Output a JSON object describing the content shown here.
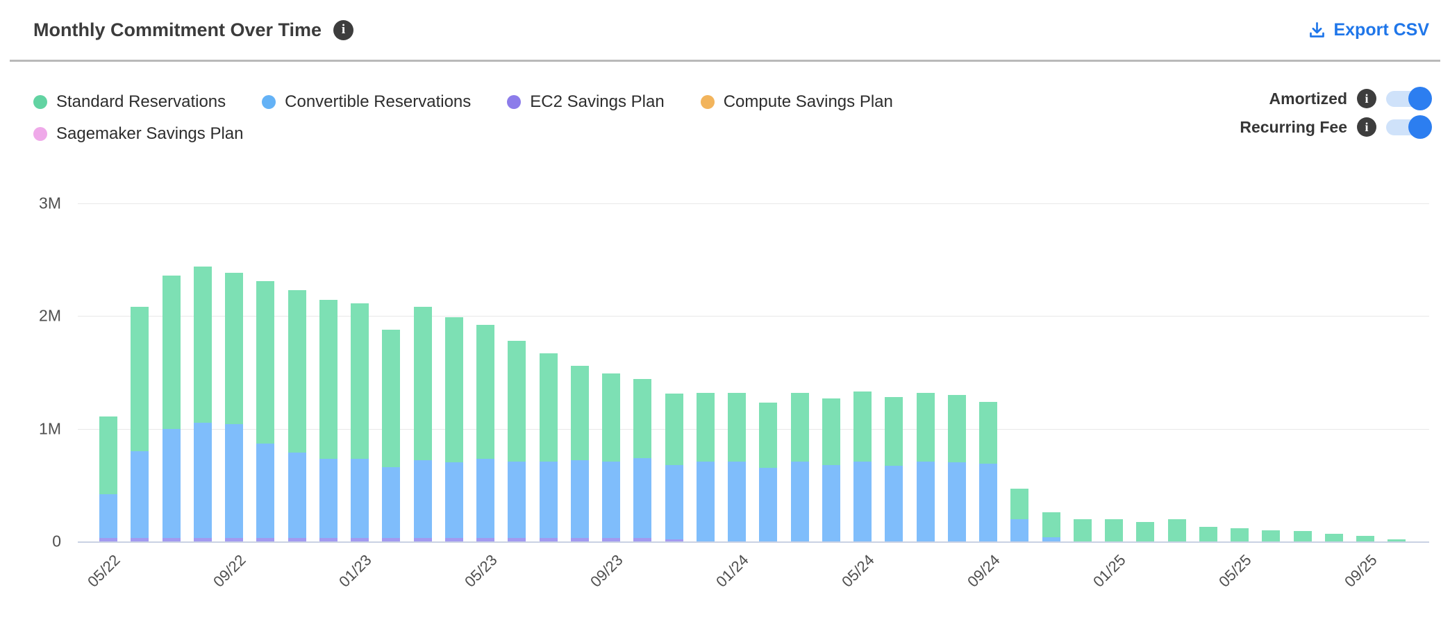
{
  "header": {
    "title": "Monthly Commitment Over Time",
    "export_label": "Export CSV"
  },
  "toggles": [
    {
      "label": "Amortized",
      "enabled": true
    },
    {
      "label": "Recurring Fee",
      "enabled": true
    }
  ],
  "colors": {
    "accent_blue": "#1f76e9",
    "toggle_knob": "#2c7ef0",
    "toggle_track": "#cfe2fa",
    "info_badge": "#3d3d3d",
    "axis_line": "#c9d1e3",
    "gridline": "#e8e8e8",
    "tick_text": "#4f4f4f"
  },
  "chart_data": {
    "type": "bar",
    "stacked": true,
    "title": "Monthly Commitment Over Time",
    "unit": "millions",
    "y_ticks": [
      "0",
      "1M",
      "2M",
      "3M"
    ],
    "ylim": [
      0,
      3
    ],
    "grid": true,
    "legend_position": "top-left",
    "months": [
      "05/22",
      "06/22",
      "07/22",
      "08/22",
      "09/22",
      "10/22",
      "11/22",
      "12/22",
      "01/23",
      "02/23",
      "03/23",
      "04/23",
      "05/23",
      "06/23",
      "07/23",
      "08/23",
      "09/23",
      "10/23",
      "11/23",
      "12/23",
      "01/24",
      "02/24",
      "03/24",
      "04/24",
      "05/24",
      "06/24",
      "07/24",
      "08/24",
      "09/24",
      "10/24",
      "11/24",
      "12/24",
      "01/25",
      "02/25",
      "03/25",
      "04/25",
      "05/25",
      "06/25",
      "07/25",
      "08/25",
      "09/25",
      "10/25"
    ],
    "x_tick_label_every": 4,
    "x_tick_labels": [
      "05/22",
      "09/22",
      "01/23",
      "05/23",
      "09/23",
      "01/24",
      "05/24",
      "09/24",
      "01/25",
      "05/25",
      "09/25"
    ],
    "stack_order_bottom_to_top": [
      "Sagemaker Savings Plan",
      "EC2 Savings Plan",
      "Convertible Reservations",
      "Standard Reservations",
      "Compute Savings Plan"
    ],
    "series": [
      {
        "name": "Standard Reservations",
        "color": "#62d3a2",
        "bar_color": "#7de0b4",
        "values": [
          0.69,
          1.28,
          1.36,
          1.39,
          1.34,
          1.44,
          1.44,
          1.41,
          1.38,
          1.22,
          1.36,
          1.29,
          1.19,
          1.07,
          0.96,
          0.84,
          0.78,
          0.7,
          0.63,
          0.61,
          0.61,
          0.58,
          0.61,
          0.59,
          0.62,
          0.61,
          0.61,
          0.6,
          0.55,
          0.27,
          0.22,
          0.2,
          0.2,
          0.17,
          0.2,
          0.13,
          0.12,
          0.1,
          0.09,
          0.07,
          0.05,
          0.02
        ]
      },
      {
        "name": "Convertible Reservations",
        "color": "#64b2f6",
        "bar_color": "#7fbdfb",
        "values": [
          0.39,
          0.77,
          0.97,
          1.02,
          1.01,
          0.84,
          0.76,
          0.7,
          0.7,
          0.63,
          0.69,
          0.67,
          0.7,
          0.68,
          0.68,
          0.69,
          0.68,
          0.71,
          0.66,
          0.71,
          0.71,
          0.65,
          0.71,
          0.68,
          0.71,
          0.67,
          0.71,
          0.7,
          0.69,
          0.2,
          0.04,
          0,
          0,
          0,
          0,
          0,
          0,
          0,
          0,
          0,
          0,
          0
        ]
      },
      {
        "name": "EC2 Savings Plan",
        "color": "#8c7cea",
        "bar_color": "#a29af0",
        "values": [
          0.03,
          0.03,
          0.03,
          0.03,
          0.03,
          0.03,
          0.03,
          0.03,
          0.03,
          0.03,
          0.03,
          0.03,
          0.03,
          0.03,
          0.03,
          0.03,
          0.03,
          0.03,
          0.02,
          0,
          0,
          0,
          0,
          0,
          0,
          0,
          0,
          0,
          0,
          0,
          0,
          0,
          0,
          0,
          0,
          0,
          0,
          0,
          0,
          0,
          0,
          0
        ]
      },
      {
        "name": "Compute Savings Plan",
        "color": "#f2b45c",
        "bar_color": "#f5c57e",
        "values": [
          0,
          0,
          0,
          0,
          0,
          0,
          0,
          0,
          0,
          0,
          0,
          0,
          0,
          0,
          0,
          0,
          0,
          0,
          0,
          0,
          0,
          0,
          0,
          0,
          0,
          0,
          0,
          0,
          0,
          0,
          0,
          0,
          0,
          0,
          0,
          0,
          0,
          0,
          0,
          0,
          0,
          0
        ]
      },
      {
        "name": "Sagemaker Savings Plan",
        "color": "#efa9e9",
        "bar_color": "#f4c0ef",
        "values": [
          0,
          0,
          0,
          0,
          0,
          0,
          0,
          0,
          0,
          0,
          0,
          0,
          0,
          0,
          0,
          0,
          0,
          0,
          0,
          0,
          0,
          0,
          0,
          0,
          0,
          0,
          0,
          0,
          0,
          0,
          0,
          0,
          0,
          0,
          0,
          0,
          0,
          0,
          0,
          0,
          0,
          0
        ]
      }
    ]
  }
}
